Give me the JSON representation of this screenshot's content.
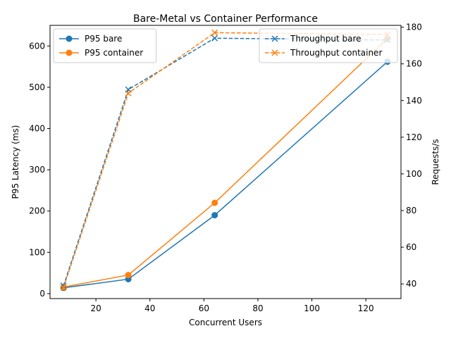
{
  "chart_data": {
    "type": "line",
    "title": "Bare-Metal vs Container Performance",
    "xlabel": "Concurrent Users",
    "ylabel": "P95 Latency (ms)",
    "y2label": "Requests/s",
    "xlim": [
      3,
      133
    ],
    "ylim": [
      -12,
      650
    ],
    "y2lim": [
      32,
      181
    ],
    "x_ticks": [
      20,
      40,
      60,
      80,
      100,
      120
    ],
    "y_ticks": [
      0,
      100,
      200,
      300,
      400,
      500,
      600
    ],
    "y2_ticks": [
      40,
      60,
      80,
      100,
      120,
      140,
      160,
      180
    ],
    "grid": false,
    "x": [
      8,
      32,
      64,
      128
    ],
    "series": [
      {
        "name": "P95 bare",
        "axis": "left",
        "values": [
          14,
          35,
          190,
          562
        ],
        "color": "#1f77b4",
        "marker": "circle",
        "linestyle": "solid"
      },
      {
        "name": "P95 container",
        "axis": "left",
        "values": [
          16,
          45,
          220,
          618
        ],
        "color": "#ff7f0e",
        "marker": "circle",
        "linestyle": "solid"
      },
      {
        "name": "Throughput bare",
        "axis": "right",
        "values": [
          39,
          146,
          174,
          173
        ],
        "color": "#1f77b4",
        "marker": "x",
        "linestyle": "dashed"
      },
      {
        "name": "Throughput container",
        "axis": "right",
        "values": [
          38,
          144,
          177,
          176
        ],
        "color": "#ff7f0e",
        "marker": "x",
        "linestyle": "dashed"
      }
    ],
    "legends": [
      {
        "placement": "upper-left",
        "series": [
          "P95 bare",
          "P95 container"
        ]
      },
      {
        "placement": "upper-right",
        "series": [
          "Throughput bare",
          "Throughput container"
        ]
      }
    ]
  }
}
